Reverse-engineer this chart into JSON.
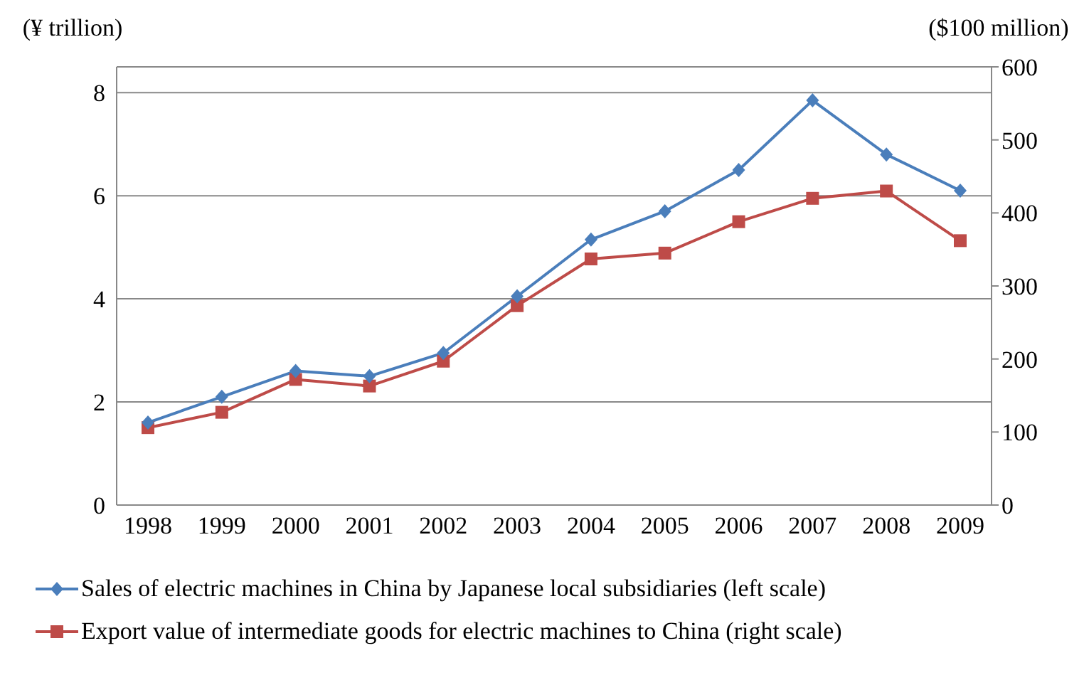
{
  "chart_data": {
    "type": "line",
    "ylabel": "(¥ trillion)",
    "y2label": "($100 million)",
    "categories": [
      "1998",
      "1999",
      "2000",
      "2001",
      "2002",
      "2003",
      "2004",
      "2005",
      "2006",
      "2007",
      "2008",
      "2009"
    ],
    "series": [
      {
        "name": "Sales of electric machines in China by Japanese local subsidiaries (left scale)",
        "color": "#4a7ebb",
        "marker": "diamond",
        "values": [
          1.6,
          2.1,
          2.6,
          2.5,
          2.95,
          4.05,
          5.15,
          5.7,
          6.5,
          7.85,
          6.8,
          6.1
        ]
      },
      {
        "name": "Export value of intermediate goods for electric machines to China (right scale)",
        "color": "#be4b48",
        "marker": "square",
        "axis": "y2",
        "values": [
          106,
          127,
          172,
          163,
          197,
          273,
          337,
          345,
          388,
          420,
          430,
          362
        ]
      }
    ],
    "ylim": [
      0,
      8.5
    ],
    "yticks": [
      0,
      2,
      4,
      6,
      8
    ],
    "y2lim": [
      0,
      600
    ],
    "y2ticks": [
      0,
      100,
      200,
      300,
      400,
      500,
      600
    ],
    "grid": "y",
    "legend": "bottom"
  }
}
